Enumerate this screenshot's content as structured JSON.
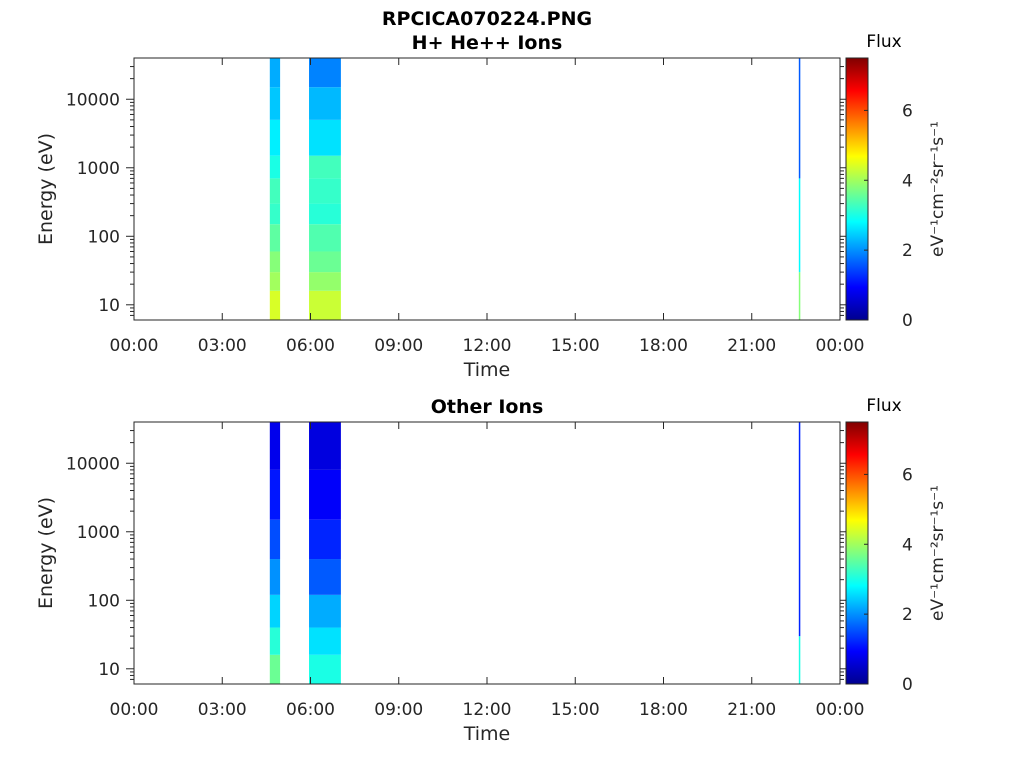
{
  "figure_title": "RPCICA070224.PNG",
  "chart_data": [
    {
      "type": "heatmap",
      "title": "H+ He++ Ions",
      "xlabel": "Time",
      "ylabel": "Energy (eV)",
      "x_ticks": [
        "00:00",
        "03:00",
        "06:00",
        "09:00",
        "12:00",
        "15:00",
        "18:00",
        "21:00",
        "00:00"
      ],
      "x_range_hours": [
        0,
        24
      ],
      "y_scale": "log",
      "y_range": [
        6,
        40000
      ],
      "y_ticks": [
        {
          "value": 10,
          "label": "10"
        },
        {
          "value": 100,
          "label": "100"
        },
        {
          "value": 1000,
          "label": "1000"
        },
        {
          "value": 10000,
          "label": "10000"
        }
      ],
      "colorbar": {
        "label": "Flux",
        "units": "eV⁻¹cm⁻²sr⁻¹s⁻¹",
        "range": [
          0,
          7.5
        ],
        "ticks": [
          "0",
          "2",
          "4",
          "6"
        ],
        "colormap": "jet"
      },
      "data_intervals": [
        {
          "start": "04:37",
          "end": "04:58",
          "energy_bands": [
            {
              "e_min": 6,
              "e_max": 16,
              "flux": 4.4
            },
            {
              "e_min": 16,
              "e_max": 30,
              "flux": 4.0
            },
            {
              "e_min": 30,
              "e_max": 60,
              "flux": 3.8
            },
            {
              "e_min": 60,
              "e_max": 150,
              "flux": 3.5
            },
            {
              "e_min": 150,
              "e_max": 300,
              "flux": 3.2
            },
            {
              "e_min": 300,
              "e_max": 700,
              "flux": 3.3
            },
            {
              "e_min": 700,
              "e_max": 1500,
              "flux": 3.0
            },
            {
              "e_min": 1500,
              "e_max": 5000,
              "flux": 2.7
            },
            {
              "e_min": 5000,
              "e_max": 15000,
              "flux": 2.4
            },
            {
              "e_min": 15000,
              "e_max": 40000,
              "flux": 2.2
            }
          ]
        },
        {
          "start": "05:57",
          "end": "07:02",
          "energy_bands": [
            {
              "e_min": 6,
              "e_max": 16,
              "flux": 4.3
            },
            {
              "e_min": 16,
              "e_max": 30,
              "flux": 3.9
            },
            {
              "e_min": 30,
              "e_max": 60,
              "flux": 3.6
            },
            {
              "e_min": 60,
              "e_max": 150,
              "flux": 3.4
            },
            {
              "e_min": 150,
              "e_max": 300,
              "flux": 3.1
            },
            {
              "e_min": 300,
              "e_max": 700,
              "flux": 3.2
            },
            {
              "e_min": 700,
              "e_max": 1500,
              "flux": 3.3
            },
            {
              "e_min": 1500,
              "e_max": 5000,
              "flux": 2.6
            },
            {
              "e_min": 5000,
              "e_max": 15000,
              "flux": 2.3
            },
            {
              "e_min": 15000,
              "e_max": 40000,
              "flux": 1.9
            }
          ]
        },
        {
          "start": "22:36",
          "end": "22:37",
          "energy_bands": [
            {
              "e_min": 6,
              "e_max": 30,
              "flux": 3.8
            },
            {
              "e_min": 30,
              "e_max": 700,
              "flux": 2.8
            },
            {
              "e_min": 700,
              "e_max": 40000,
              "flux": 1.6
            }
          ]
        }
      ]
    },
    {
      "type": "heatmap",
      "title": "Other Ions",
      "xlabel": "Time",
      "ylabel": "Energy (eV)",
      "x_ticks": [
        "00:00",
        "03:00",
        "06:00",
        "09:00",
        "12:00",
        "15:00",
        "18:00",
        "21:00",
        "00:00"
      ],
      "x_range_hours": [
        0,
        24
      ],
      "y_scale": "log",
      "y_range": [
        6,
        40000
      ],
      "y_ticks": [
        {
          "value": 10,
          "label": "10"
        },
        {
          "value": 100,
          "label": "100"
        },
        {
          "value": 1000,
          "label": "1000"
        },
        {
          "value": 10000,
          "label": "10000"
        }
      ],
      "colorbar": {
        "label": "Flux",
        "units": "eV⁻¹cm⁻²sr⁻¹s⁻¹",
        "range": [
          0,
          7.5
        ],
        "ticks": [
          "0",
          "2",
          "4",
          "6"
        ],
        "colormap": "jet"
      },
      "data_intervals": [
        {
          "start": "04:37",
          "end": "04:58",
          "energy_bands": [
            {
              "e_min": 6,
              "e_max": 16,
              "flux": 3.6
            },
            {
              "e_min": 16,
              "e_max": 40,
              "flux": 3.1
            },
            {
              "e_min": 40,
              "e_max": 120,
              "flux": 2.5
            },
            {
              "e_min": 120,
              "e_max": 400,
              "flux": 2.0
            },
            {
              "e_min": 400,
              "e_max": 1500,
              "flux": 1.5
            },
            {
              "e_min": 1500,
              "e_max": 8000,
              "flux": 1.1
            },
            {
              "e_min": 8000,
              "e_max": 40000,
              "flux": 0.8
            }
          ]
        },
        {
          "start": "05:57",
          "end": "07:02",
          "energy_bands": [
            {
              "e_min": 6,
              "e_max": 16,
              "flux": 3.0
            },
            {
              "e_min": 16,
              "e_max": 40,
              "flux": 2.6
            },
            {
              "e_min": 40,
              "e_max": 120,
              "flux": 2.2
            },
            {
              "e_min": 120,
              "e_max": 400,
              "flux": 1.6
            },
            {
              "e_min": 400,
              "e_max": 1500,
              "flux": 1.2
            },
            {
              "e_min": 1500,
              "e_max": 8000,
              "flux": 0.9
            },
            {
              "e_min": 8000,
              "e_max": 40000,
              "flux": 0.7
            }
          ]
        },
        {
          "start": "22:36",
          "end": "22:37",
          "energy_bands": [
            {
              "e_min": 6,
              "e_max": 30,
              "flux": 3.0
            },
            {
              "e_min": 30,
              "e_max": 40000,
              "flux": 1.2
            }
          ]
        }
      ]
    }
  ]
}
